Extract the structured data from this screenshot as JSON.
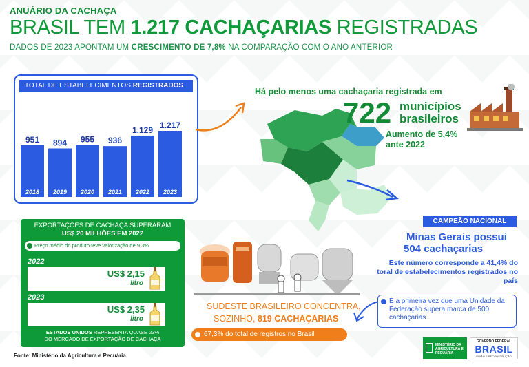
{
  "header": {
    "kicker": "ANUÁRIO DA CACHAÇA",
    "title_pre": "BRASIL TEM ",
    "title_bold": "1.217 CACHAÇARIAS",
    "title_post": " REGISTRADAS",
    "subtitle_pre": "DADOS DE 2023 APONTAM UM ",
    "subtitle_bold": "CRESCIMENTO DE 7,8%",
    "subtitle_post": " NA COMPARAÇÃO COM O ANO ANTERIOR"
  },
  "chart_data": {
    "type": "bar",
    "title_pre": "TOTAL DE ESTABELECIMENTOS ",
    "title_bold": "REGISTRADOS",
    "categories": [
      "2018",
      "2019",
      "2020",
      "2021",
      "2022",
      "2023"
    ],
    "values": [
      951,
      894,
      955,
      936,
      1129,
      1217
    ],
    "value_labels": [
      "951",
      "894",
      "955",
      "936",
      "1.129",
      "1.217"
    ],
    "bar_color": "#2b5be0",
    "grid": false
  },
  "municipios": {
    "line": "Há pelo menos uma cachaçaria registrada em",
    "number": "722",
    "label1": "municípios",
    "label2": "brasileiros",
    "growth1": "Aumento de 5,4%",
    "growth2": "ante 2022"
  },
  "exports": {
    "title1": "EXPORTAÇÕES DE CACHAÇA SUPERARAM",
    "title2": "US$ 20 MILHÕES EM 2022",
    "note": "Preço médio do produto teve valorização de 9,3%",
    "rows": [
      {
        "year": "2022",
        "price": "US$ 2,15",
        "unit": "litro"
      },
      {
        "year": "2023",
        "price": "US$ 2,35",
        "unit": "litro"
      }
    ],
    "foot_bold": "ESTADOS UNIDOS",
    "foot1": " REPRESENTA QUASE 23%",
    "foot2": "DO MERCADO DE EXPORTAÇÃO DE CACHAÇA"
  },
  "source": "Fonte: Ministério da Agricultura e Pecuária",
  "champion": {
    "badge": "CAMPEÃO NACIONAL",
    "line1": "Minas Gerais possui",
    "line2": "504  cachaçarias",
    "desc": "Este número corresponde a 41,4% do toral de estabelecimentos registrados no país",
    "first": "É a primeira vez que uma Unidade da Federação supera marca de 500 cachaçarias"
  },
  "sudeste": {
    "line1": "SUDESTE BRASILEIRO CONCENTRA,",
    "line2_pre": "SOZINHO, ",
    "line2_bold": "819 CACHAÇARIAS",
    "pill": "67,3% do total de registros no Brasil"
  },
  "logos": {
    "ministry": "MINISTÉRIO DA AGRICULTURA E PECUÁRIA",
    "gov_top": "GOVERNO FEDERAL",
    "gov_word": "BRASIL",
    "gov_sub": "UNIÃO E RECONSTRUÇÃO"
  },
  "colors": {
    "green": "#138a36",
    "blue": "#2b5be0",
    "orange": "#f07f1b"
  }
}
